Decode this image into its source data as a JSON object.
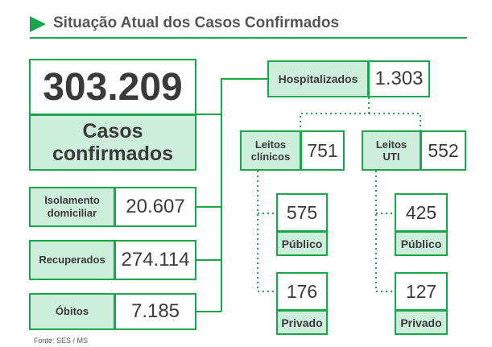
{
  "header": {
    "title": "Situação Atual dos Casos Confirmados"
  },
  "total": {
    "value": "303.209",
    "label": "Casos confirmados"
  },
  "side": {
    "isolamento": {
      "label": "Isolamento domiciliar",
      "value": "20.607"
    },
    "recuperados": {
      "label": "Recuperados",
      "value": "274.114"
    },
    "obitos": {
      "label": "Óbitos",
      "value": "7.185"
    }
  },
  "hospitalizados": {
    "label": "Hospitalizados",
    "value": "1.303"
  },
  "leitos_clinicos": {
    "label": "Leitos clínicos",
    "value": "751",
    "publico": {
      "value": "575",
      "label": "Público"
    },
    "privado": {
      "value": "176",
      "label": "Privado"
    }
  },
  "leitos_uti": {
    "label": "Leitos UTI",
    "value": "552",
    "publico": {
      "value": "425",
      "label": "Público"
    },
    "privado": {
      "value": "127",
      "label": "Privado"
    }
  },
  "source": "Fonte: SES / MS",
  "colors": {
    "accent": "#1aa64a",
    "fill": "#cdeedb",
    "text": "#3a3a3a"
  }
}
